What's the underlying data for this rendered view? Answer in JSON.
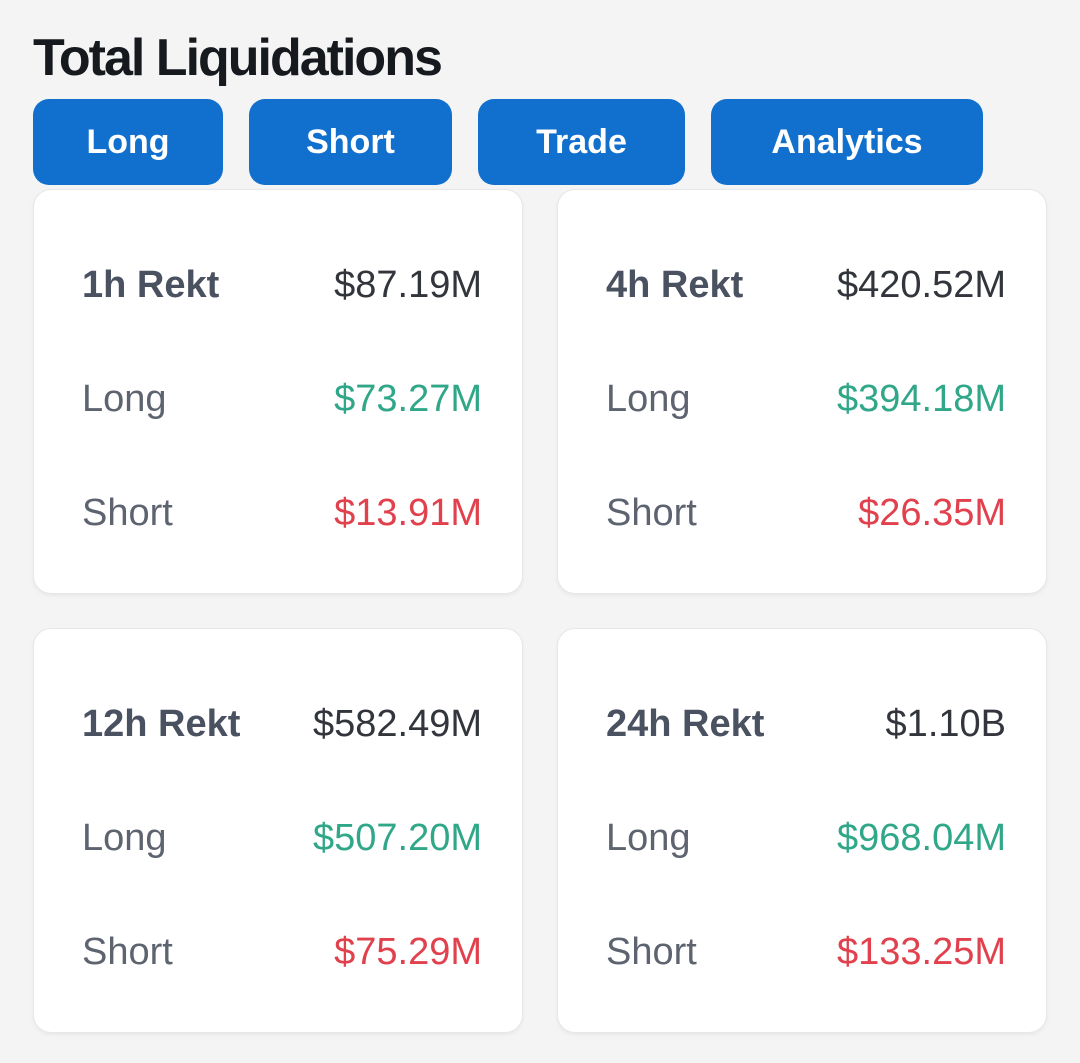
{
  "page": {
    "title": "Total Liquidations"
  },
  "colors": {
    "background": "#f4f4f5",
    "tab_blue": "#1170cd",
    "long_green": "#30a788",
    "short_red": "#e0414d",
    "card_border": "#e6e7e9"
  },
  "tabs": [
    {
      "label": "Long"
    },
    {
      "label": "Short"
    },
    {
      "label": "Trade"
    },
    {
      "label": "Analytics"
    }
  ],
  "cards": [
    {
      "period_label": "1h Rekt",
      "total": "$87.19M",
      "long_label": "Long",
      "long_value": "$73.27M",
      "short_label": "Short",
      "short_value": "$13.91M"
    },
    {
      "period_label": "4h Rekt",
      "total": "$420.52M",
      "long_label": "Long",
      "long_value": "$394.18M",
      "short_label": "Short",
      "short_value": "$26.35M"
    },
    {
      "period_label": "12h Rekt",
      "total": "$582.49M",
      "long_label": "Long",
      "long_value": "$507.20M",
      "short_label": "Short",
      "short_value": "$75.29M"
    },
    {
      "period_label": "24h Rekt",
      "total": "$1.10B",
      "long_label": "Long",
      "long_value": "$968.04M",
      "short_label": "Short",
      "short_value": "$133.25M"
    }
  ]
}
